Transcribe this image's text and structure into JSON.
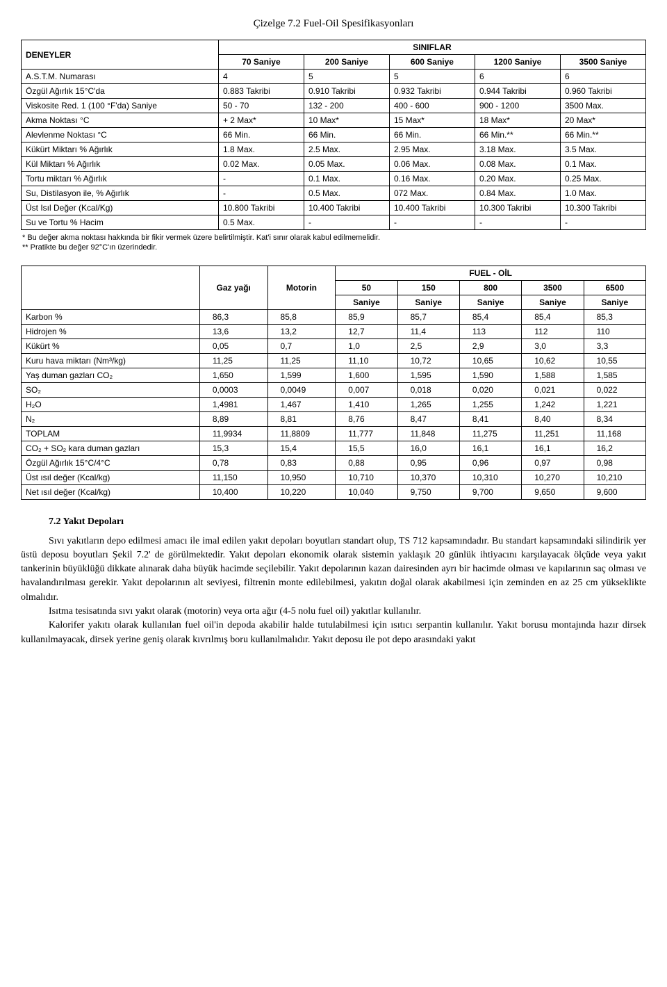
{
  "title": "Çizelge 7.2 Fuel-Oil Spesifikasyonları",
  "table1": {
    "header_tests": "DENEYLER",
    "header_classes": "SINIFLAR",
    "class_cols": [
      "70 Saniye",
      "200 Saniye",
      "600 Saniye",
      "1200 Saniye",
      "3500 Saniye"
    ],
    "rows": [
      {
        "label": "A.S.T.M. Numarası",
        "vals": [
          "4",
          "5",
          "5",
          "6",
          "6"
        ]
      },
      {
        "label": "Özgül Ağırlık 15°C'da",
        "vals": [
          "0.883 Takribi",
          "0.910 Takribi",
          "0.932 Takribi",
          "0.944 Takribi",
          "0.960 Takribi"
        ]
      },
      {
        "label": "Viskosite Red. 1 (100 °F'da) Saniye",
        "vals": [
          "50 - 70",
          "132 - 200",
          "400 - 600",
          "900 - 1200",
          "3500 Max."
        ]
      },
      {
        "label": "Akma Noktası °C",
        "vals": [
          "+ 2 Max*",
          "10 Max*",
          "15 Max*",
          "18 Max*",
          "20 Max*"
        ]
      },
      {
        "label": "Alevlenme Noktası °C",
        "vals": [
          "66 Min.",
          "66 Min.",
          "66 Min.",
          "66 Min.**",
          "66 Min.**"
        ]
      },
      {
        "label": "Kükürt Miktarı % Ağırlık",
        "vals": [
          "1.8 Max.",
          "2.5 Max.",
          "2.95 Max.",
          "3.18 Max.",
          "3.5 Max."
        ]
      },
      {
        "label": "Kül Miktarı % Ağırlık",
        "vals": [
          "0.02 Max.",
          "0.05 Max.",
          "0.06 Max.",
          "0.08 Max.",
          "0.1 Max."
        ]
      },
      {
        "label": "Tortu miktarı % Ağırlık",
        "vals": [
          "-",
          "0.1 Max.",
          "0.16 Max.",
          "0.20 Max.",
          "0.25 Max."
        ]
      },
      {
        "label": "Su, Distilasyon ile, % Ağırlık",
        "vals": [
          "-",
          "0.5 Max.",
          "072 Max.",
          "0.84 Max.",
          "1.0 Max."
        ]
      },
      {
        "label": "Üst Isıl Değer (Kcal/Kg)",
        "vals": [
          "10.800 Takribi",
          "10.400 Takribi",
          "10.400 Takribi",
          "10.300 Takribi",
          "10.300 Takribi"
        ]
      },
      {
        "label": "Su ve Tortu % Hacim",
        "vals": [
          "0.5 Max.",
          "-",
          "-",
          "-",
          "-"
        ]
      }
    ],
    "footnote1": "* Bu değer akma noktası hakkında bir fikir vermek üzere belirtilmiştir. Kat'i sınır olarak kabul edilmemelidir.",
    "footnote2": "** Pratikte bu değer 92°C'ın üzerindedir."
  },
  "table2": {
    "col_gas": "Gaz yağı",
    "col_motorin": "Motorin",
    "fuel_oil_header": "FUEL - OİL",
    "fuel_cols_top": [
      "50",
      "150",
      "800",
      "3500",
      "6500"
    ],
    "fuel_cols_bottom": [
      "Saniye",
      "Saniye",
      "Saniye",
      "Saniye",
      "Saniye"
    ],
    "rows": [
      {
        "label": "Karbon %",
        "vals": [
          "86,3",
          "85,8",
          "85,9",
          "85,7",
          "85,4",
          "85,4",
          "85,3"
        ]
      },
      {
        "label": "Hidrojen %",
        "vals": [
          "13,6",
          "13,2",
          "12,7",
          "11,4",
          "113",
          "112",
          "110"
        ]
      },
      {
        "label": "Kükürt %",
        "vals": [
          "0,05",
          "0,7",
          "1,0",
          "2,5",
          "2,9",
          "3,0",
          "3,3"
        ]
      },
      {
        "label": "Kuru hava miktarı (Nm³/kg)",
        "vals": [
          "11,25",
          "11,25",
          "11,10",
          "10,72",
          "10,65",
          "10,62",
          "10,55"
        ]
      },
      {
        "label": "Yaş duman gazları CO₂",
        "vals": [
          "1,650",
          "1,599",
          "1,600",
          "1,595",
          "1,590",
          "1,588",
          "1,585"
        ]
      },
      {
        "label": "SO₂",
        "vals": [
          "0,0003",
          "0,0049",
          "0,007",
          "0,018",
          "0,020",
          "0,021",
          "0,022"
        ]
      },
      {
        "label": "H₂O",
        "vals": [
          "1,4981",
          "1,467",
          "1,410",
          "1,265",
          "1,255",
          "1,242",
          "1,221"
        ]
      },
      {
        "label": "N₂",
        "vals": [
          "8,89",
          "8,81",
          "8,76",
          "8,47",
          "8,41",
          "8,40",
          "8,34"
        ]
      },
      {
        "label": "TOPLAM",
        "vals": [
          "11,9934",
          "11,8809",
          "11,777",
          "11,848",
          "11,275",
          "11,251",
          "11,168"
        ]
      },
      {
        "label": "CO₂ + SO₂ kara duman gazları",
        "vals": [
          "15,3",
          "15,4",
          "15,5",
          "16,0",
          "16,1",
          "16,1",
          "16,2"
        ]
      },
      {
        "label": "Özgül Ağırlık 15°C/4°C",
        "vals": [
          "0,78",
          "0,83",
          "0,88",
          "0,95",
          "0,96",
          "0,97",
          "0,98"
        ]
      },
      {
        "label": "Üst ısıl değer (Kcal/kg)",
        "vals": [
          "11,150",
          "10,950",
          "10,710",
          "10,370",
          "10,310",
          "10,270",
          "10,210"
        ]
      },
      {
        "label": "Net ısıl değer (Kcal/kg)",
        "vals": [
          "10,400",
          "10,220",
          "10,040",
          "9,750",
          "9,700",
          "9,650",
          "9,600"
        ]
      }
    ]
  },
  "section": {
    "heading": "7.2 Yakıt Depoları",
    "p1": "Sıvı yakıtların depo edilmesi amacı ile imal edilen yakıt depoları  boyutları standart olup, TS 712  kapsamındadır. Bu standart kapsamındaki silindirik yer üstü deposu boyutları Şekil 7.2' de görülmektedir.   Yakıt depoları ekonomik olarak sistemin yaklaşık 20 günlük ihtiyacını karşılayacak ölçüde  veya yakıt tankerinin büyüklüğü  dikkate alınarak daha büyük hacimde seçilebilir. Yakıt depolarının kazan dairesinden ayrı bir hacimde olması  ve kapılarının saç olması ve havalandırılması gerekir. Yakıt depolarının alt seviyesi,  filtrenin monte edilebilmesi, yakıtın doğal olarak akabilmesi için zeminden   en az 25 cm yükseklikte olmalıdır.",
    "p2": "Isıtma tesisatında  sıvı yakıt olarak (motorin)  veya orta ağır (4-5 nolu fuel oil) yakıtlar kullanılır.",
    "p3": "Kalorifer yakıtı olarak kullanılan  fuel oil'in depoda akabilir halde tutulabilmesi  için ısıtıcı serpantin kullanılır. Yakıt borusu montajında hazır dirsek kullanılmayacak, dirsek yerine geniş olarak kıvrılmış boru kullanılmalıdır. Yakıt deposu ile pot depo arasındaki yakıt"
  }
}
